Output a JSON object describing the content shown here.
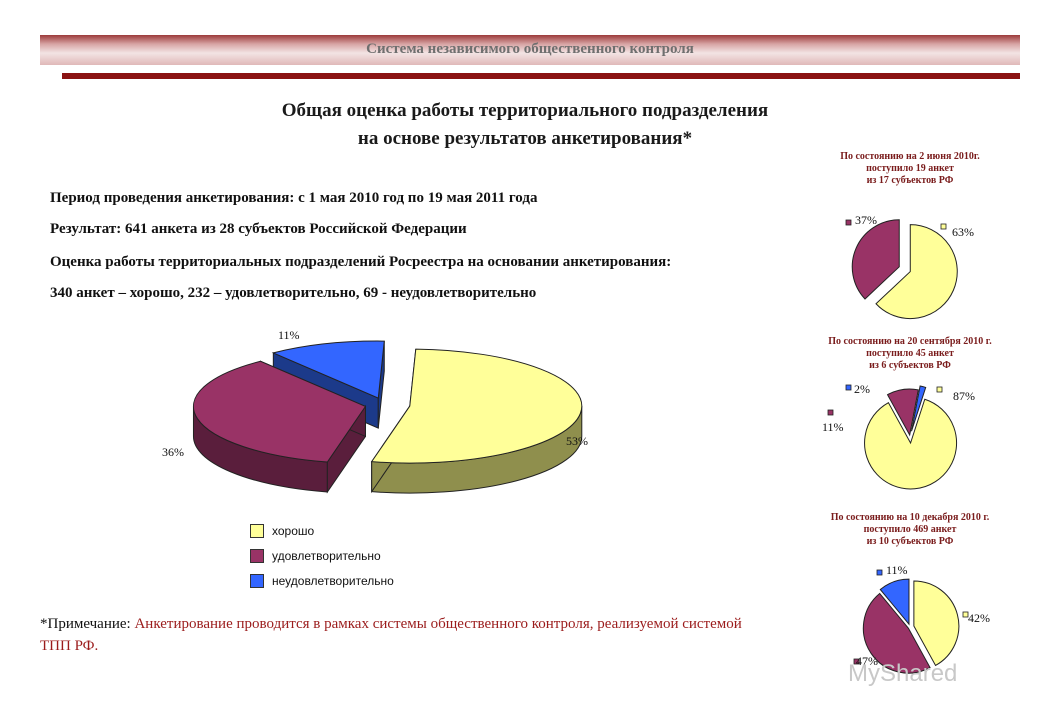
{
  "header": {
    "banner": "Система независимого общественного контроля"
  },
  "title": {
    "line1": "Общая оценка работы территориального подразделения",
    "line2": "на основе результатов анкетирования*"
  },
  "info": {
    "period": "Период проведения анкетирования: с 1 мая 2010 год по 19 мая 2011 года",
    "result": "Результат: 641 анкета из 28 субъектов Российской Федерации",
    "assessment": "Оценка работы территориальных подразделений Росреестра на основании анкетирования:",
    "counts": "340 анкет – хорошо, 232 – удовлетворительно, 69 - неудовлетворительно"
  },
  "note": {
    "label": "*Примечание:",
    "text": "Анкетирование проводится в рамках системы общественного контроля, реализуемой системой ТПП РФ."
  },
  "legend": [
    "хорошо",
    "удовлетворительно",
    "неудовлетворительно"
  ],
  "colors": {
    "good": "#ffff99",
    "satisfactory": "#993366",
    "unsatisfactory": "#3366ff"
  },
  "chart_data": [
    {
      "type": "pie",
      "categories": [
        "хорошо",
        "удовлетворительно",
        "неудовлетворительно"
      ],
      "values": [
        53,
        36,
        11
      ],
      "labels": [
        "53%",
        "36%",
        "11%"
      ]
    },
    {
      "type": "pie",
      "title": [
        "По состоянию на 2 июня 2010г.",
        "поступило 19 анкет",
        "из 17 субъектов РФ"
      ],
      "categories": [
        "хорошо",
        "удовлетворительно"
      ],
      "values": [
        63,
        37
      ],
      "labels": [
        "63%",
        "37%"
      ]
    },
    {
      "type": "pie",
      "title": [
        "По состоянию на 20 сентября 2010 г.",
        "поступило 45 анкет",
        "из 6 субъектов РФ"
      ],
      "categories": [
        "хорошо",
        "удовлетворительно",
        "неудовлетворительно"
      ],
      "values": [
        87,
        11,
        2
      ],
      "labels": [
        "87%",
        "11%",
        "2%"
      ]
    },
    {
      "type": "pie",
      "title": [
        "По состоянию на 10 декабря 2010 г.",
        "поступило 469 анкет",
        "из 10 субъектов РФ"
      ],
      "categories": [
        "хорошо",
        "удовлетворительно",
        "неудовлетворительно"
      ],
      "values": [
        42,
        47,
        11
      ],
      "labels": [
        "42%",
        "47%",
        "11%"
      ]
    }
  ],
  "watermark": "MyShared"
}
